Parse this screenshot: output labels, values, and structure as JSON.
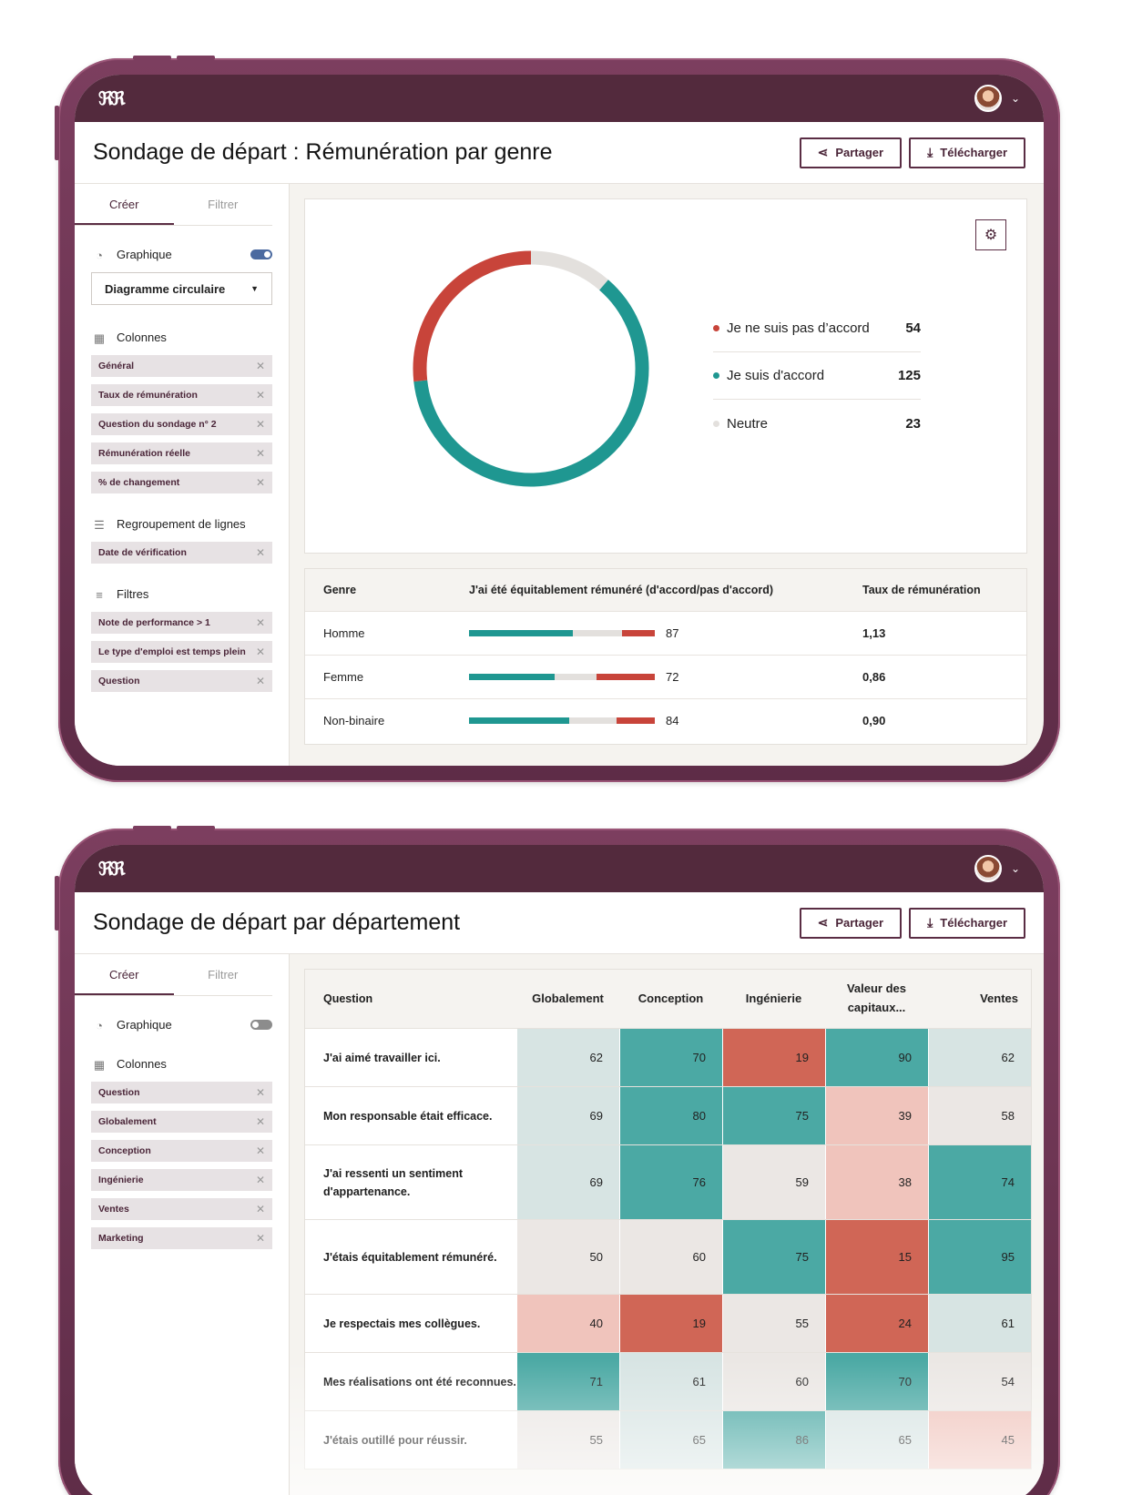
{
  "brand": {
    "logo": "ℜℜ"
  },
  "accent": "#532a3d",
  "colors": {
    "disagree": "#c8443a",
    "agree": "#1f9791",
    "neutral": "#e3e0dd"
  },
  "common": {
    "share_label": "Partager",
    "download_label": "Télécharger",
    "tab_create": "Créer",
    "tab_filter": "Filtrer"
  },
  "screen1": {
    "title": "Sondage de départ : Rémunération par genre",
    "sidebar": {
      "chart_section": "Graphique",
      "chart_type": "Diagramme circulaire",
      "columns_section": "Colonnes",
      "columns": [
        "Général",
        "Taux de rémunération",
        "Question du sondage n° 2",
        "Rémunération réelle",
        "% de changement"
      ],
      "grouping_section": "Regroupement de lignes",
      "grouping": [
        "Date de vérification"
      ],
      "filters_section": "Filtres",
      "filters": [
        "Note de performance > 1",
        "Le type d'emploi est temps plein",
        "Question"
      ]
    },
    "legend": [
      {
        "label": "Je ne suis pas d’accord",
        "value": "54"
      },
      {
        "label": "Je suis d'accord",
        "value": "125"
      },
      {
        "label": "Neutre",
        "value": "23"
      }
    ],
    "table": {
      "headers": [
        "Genre",
        "J'ai été équitablement rémunéré (d'accord/pas d'accord)",
        "Taux de rémunération"
      ],
      "rows": [
        {
          "genre": "Homme",
          "score": "87",
          "rate": "1,13"
        },
        {
          "genre": "Femme",
          "score": "72",
          "rate": "0,86"
        },
        {
          "genre": "Non-binaire",
          "score": "84",
          "rate": "0,90"
        }
      ]
    }
  },
  "screen2": {
    "title": "Sondage de départ par département",
    "sidebar": {
      "chart_section": "Graphique",
      "columns_section": "Colonnes",
      "columns": [
        "Question",
        "Globalement",
        "Conception",
        "Ingénierie",
        "Ventes",
        "Marketing"
      ]
    },
    "heatmap": {
      "headers": [
        "Question",
        "Globalement",
        "Conception",
        "Ingénierie",
        "Valeur des capitaux...",
        "Ventes"
      ],
      "rows": [
        {
          "q": "J'ai aimé travailler ici.",
          "v": [
            "62",
            "70",
            "19",
            "90",
            "62"
          ]
        },
        {
          "q": "Mon responsable était efficace.",
          "v": [
            "69",
            "80",
            "75",
            "39",
            "58"
          ]
        },
        {
          "q": "J'ai ressenti un sentiment d'appartenance.",
          "v": [
            "69",
            "76",
            "59",
            "38",
            "74"
          ]
        },
        {
          "q": "J'étais équitablement rémunéré.",
          "v": [
            "50",
            "60",
            "75",
            "15",
            "95"
          ]
        },
        {
          "q": "Je respectais mes collègues.",
          "v": [
            "40",
            "19",
            "55",
            "24",
            "61"
          ]
        },
        {
          "q": "Mes réalisations ont été reconnues.",
          "v": [
            "71",
            "61",
            "60",
            "70",
            "54"
          ]
        },
        {
          "q": "J'étais outillé pour réussir.",
          "v": [
            "55",
            "65",
            "86",
            "65",
            "45"
          ]
        }
      ]
    }
  },
  "chart_data": {
    "type": "pie",
    "categories": [
      "Je ne suis pas d’accord",
      "Je suis d'accord",
      "Neutre"
    ],
    "values": [
      54,
      125,
      23
    ]
  }
}
